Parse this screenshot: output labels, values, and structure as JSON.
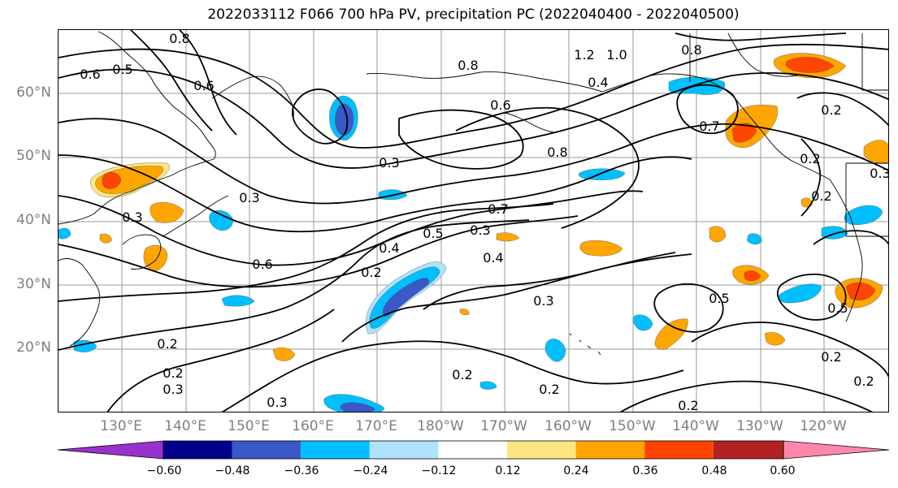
{
  "title": "2022033112 F066 700 hPa PV, precipitation PC (2022040400 - 2022040500)",
  "lat_labels": [
    "60°N",
    "50°N",
    "40°N",
    "30°N",
    "20°N"
  ],
  "lon_labels": [
    "130°E",
    "140°E",
    "150°E",
    "160°E",
    "170°E",
    "180°W",
    "170°W",
    "160°W",
    "150°W",
    "140°W",
    "130°W",
    "120°W"
  ],
  "contour_labels": [
    "0.6",
    "0.5",
    "0.8",
    "0.6",
    "1.2",
    "1.0",
    "0.8",
    "0.8",
    "0.6",
    "0.4",
    "0.7",
    "0.3",
    "0.8",
    "0.3",
    "0.3",
    "0.7",
    "0.5",
    "0.4",
    "0.3",
    "0.6",
    "0.2",
    "0.4",
    "0.2",
    "0.3",
    "0.5",
    "0.2",
    "0.2",
    "0.3",
    "0.2",
    "0.2",
    "0.2",
    "0.2",
    "0.3",
    "0.2",
    "0.2",
    "0.3",
    "0.2",
    "0.5"
  ],
  "colorbar": {
    "ticks": [
      "−0.60",
      "−0.48",
      "−0.36",
      "−0.24",
      "−0.12",
      "0.12",
      "0.24",
      "0.36",
      "0.48",
      "0.60"
    ],
    "colors": [
      "#9932cc",
      "#00008b",
      "#3a58c8",
      "#00bfff",
      "#b0e2ff",
      "#ffffff",
      "#ffe680",
      "#ffa500",
      "#ff4500",
      "#b22222",
      "#ff88aa"
    ]
  }
}
